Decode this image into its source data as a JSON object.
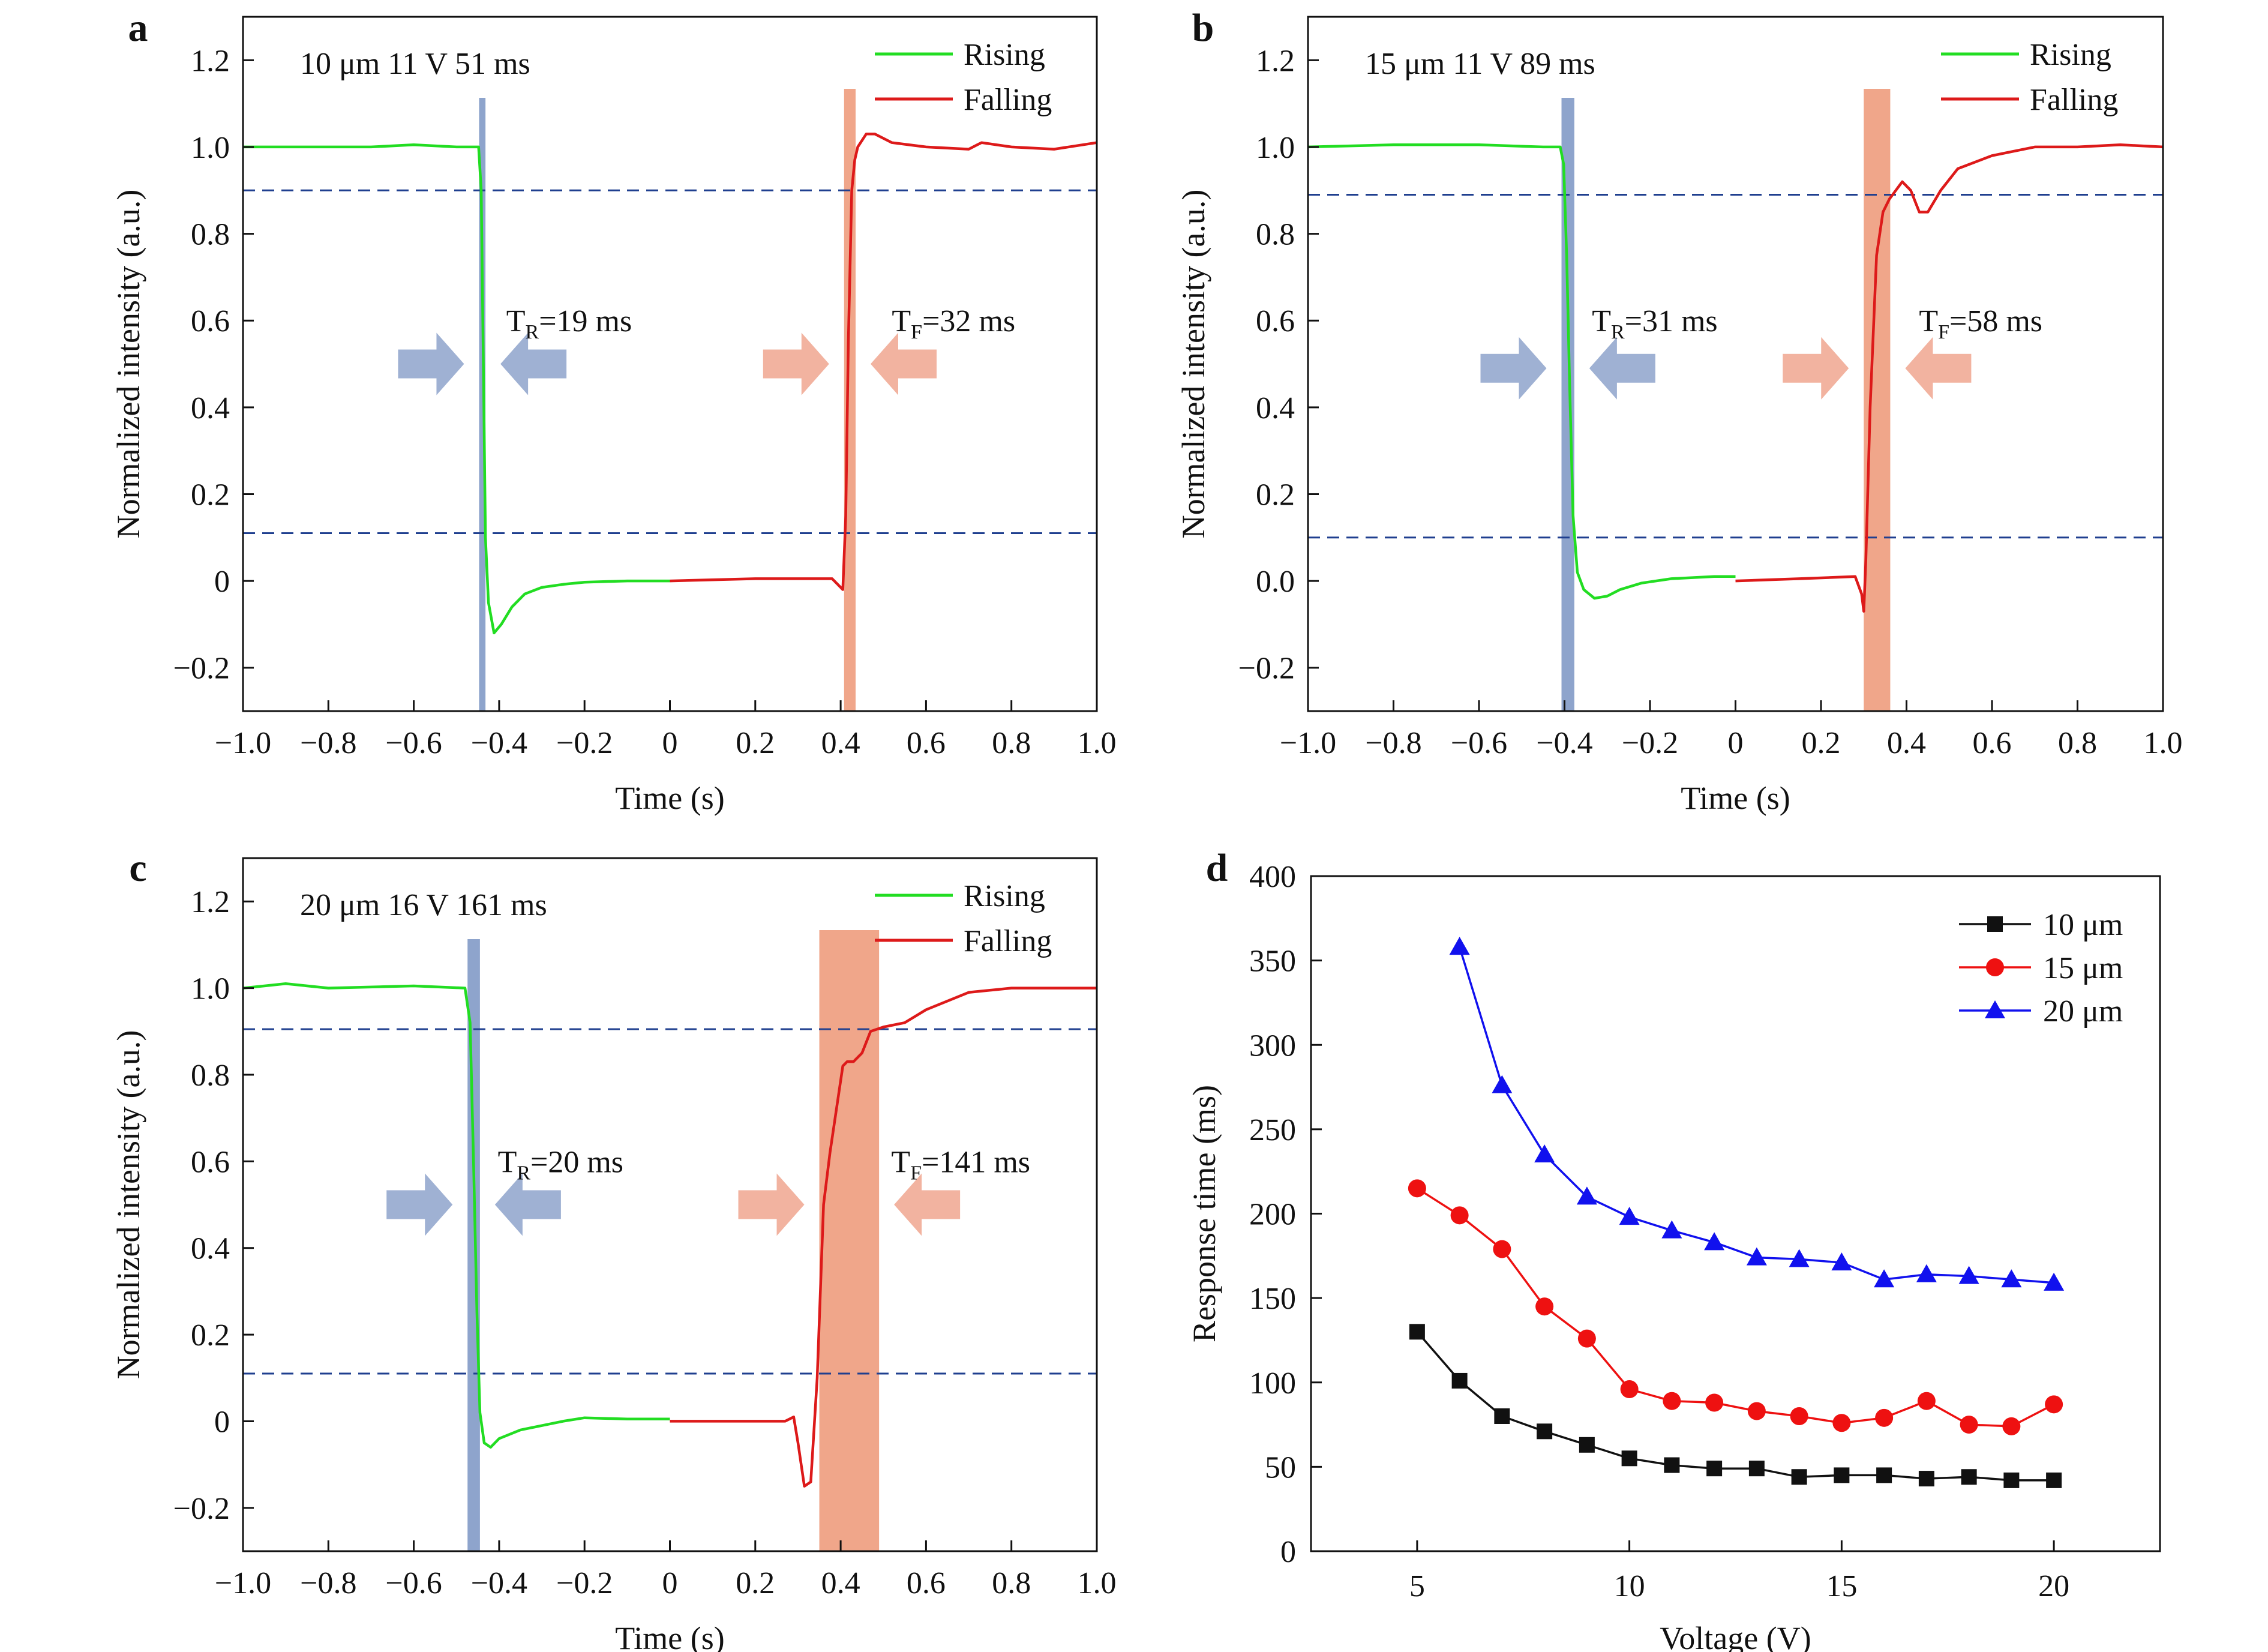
{
  "figure": {
    "panels": [
      "a",
      "b",
      "c",
      "d"
    ]
  },
  "colors": {
    "rising": "#22dd22",
    "falling": "#dd1a1a",
    "threshold": "#1f3f8f",
    "rise_band": "#8ea4cc",
    "fall_band": "#f0a68a",
    "rise_arrow": "#9fb1d3",
    "fall_arrow": "#f2b3a0",
    "s10": "#111111",
    "s15": "#ee1111",
    "s20": "#1111ee"
  },
  "chart_data": [
    {
      "type": "line",
      "panel": "a",
      "xlabel": "Time (s)",
      "ylabel": "Normalized intensity (a.u.)",
      "xlim": [
        -1.0,
        1.0
      ],
      "ylim": [
        -0.3,
        1.3
      ],
      "xticks": [
        -1.0,
        -0.8,
        -0.6,
        -0.4,
        -0.2,
        0,
        0.2,
        0.4,
        0.6,
        0.8,
        1.0
      ],
      "xtick_labels": [
        "−1.0",
        "−0.8",
        "−0.6",
        "−0.4",
        "−0.2",
        "0",
        "0.2",
        "0.4",
        "0.6",
        "0.8",
        "1.0"
      ],
      "yticks": [
        -0.2,
        0,
        0.2,
        0.4,
        0.6,
        0.8,
        1.0,
        1.2
      ],
      "ytick_labels": [
        "−0.2",
        "0",
        "0.2",
        "0.4",
        "0.6",
        "0.8",
        "1.0",
        "1.2"
      ],
      "annotation": "10 μm  11 V  51 ms",
      "rise_label": {
        "main": "T",
        "sub": "R",
        "rest": "=19 ms"
      },
      "fall_label": {
        "main": "T",
        "sub": "F",
        "rest": "=32 ms"
      },
      "thresholds": [
        0.9,
        0.11
      ],
      "rise_band": [
        -0.447,
        -0.432
      ],
      "fall_band": [
        0.408,
        0.435
      ],
      "rise_arrows_y": 0.5,
      "fall_arrows_y": 0.5,
      "legend": [
        "Rising",
        "Falling"
      ],
      "series": [
        {
          "name": "Rising",
          "x": [
            -1.0,
            -0.7,
            -0.6,
            -0.5,
            -0.448,
            -0.442,
            -0.437,
            -0.432,
            -0.425,
            -0.412,
            -0.395,
            -0.37,
            -0.34,
            -0.3,
            -0.25,
            -0.2,
            -0.1,
            0
          ],
          "y": [
            1.0,
            1.0,
            1.005,
            1.0,
            1.0,
            0.9,
            0.5,
            0.1,
            -0.05,
            -0.12,
            -0.1,
            -0.06,
            -0.03,
            -0.015,
            -0.008,
            -0.003,
            0.0,
            0.0
          ]
        },
        {
          "name": "Falling",
          "x": [
            0,
            0.2,
            0.38,
            0.405,
            0.412,
            0.418,
            0.426,
            0.433,
            0.44,
            0.46,
            0.48,
            0.52,
            0.6,
            0.7,
            0.72,
            0.73,
            0.8,
            0.9,
            1.0
          ],
          "y": [
            0.0,
            0.005,
            0.005,
            -0.02,
            0.15,
            0.55,
            0.9,
            0.97,
            1.0,
            1.03,
            1.03,
            1.01,
            1.0,
            0.995,
            1.005,
            1.01,
            1.0,
            0.995,
            1.01
          ]
        }
      ]
    },
    {
      "type": "line",
      "panel": "b",
      "xlabel": "Time (s)",
      "ylabel": "Normalized intensity (a.u.)",
      "xlim": [
        -1.0,
        1.0
      ],
      "ylim": [
        -0.3,
        1.3
      ],
      "xticks": [
        -1.0,
        -0.8,
        -0.6,
        -0.4,
        -0.2,
        0,
        0.2,
        0.4,
        0.6,
        0.8,
        1.0
      ],
      "xtick_labels": [
        "−1.0",
        "−0.8",
        "−0.6",
        "−0.4",
        "−0.2",
        "0",
        "0.2",
        "0.4",
        "0.6",
        "0.8",
        "1.0"
      ],
      "yticks": [
        -0.2,
        0,
        0.2,
        0.4,
        0.6,
        0.8,
        1.0,
        1.2
      ],
      "ytick_labels": [
        "−0.2",
        "0.0",
        "0.2",
        "0.4",
        "0.6",
        "0.8",
        "1.0",
        "1.2"
      ],
      "annotation": "15 μm  11 V  89 ms",
      "rise_label": {
        "main": "T",
        "sub": "R",
        "rest": "=31 ms"
      },
      "fall_label": {
        "main": "T",
        "sub": "F",
        "rest": "=58 ms"
      },
      "thresholds": [
        0.89,
        0.1
      ],
      "rise_band": [
        -0.407,
        -0.377
      ],
      "fall_band": [
        0.3,
        0.362
      ],
      "rise_arrows_y": 0.49,
      "fall_arrows_y": 0.49,
      "legend": [
        "Rising",
        "Falling"
      ],
      "series": [
        {
          "name": "Rising",
          "x": [
            -1.0,
            -0.8,
            -0.6,
            -0.45,
            -0.41,
            -0.402,
            -0.395,
            -0.388,
            -0.38,
            -0.37,
            -0.355,
            -0.33,
            -0.3,
            -0.27,
            -0.22,
            -0.15,
            -0.05,
            0
          ],
          "y": [
            1.0,
            1.005,
            1.005,
            1.0,
            1.0,
            0.96,
            0.75,
            0.45,
            0.15,
            0.02,
            -0.02,
            -0.04,
            -0.035,
            -0.02,
            -0.005,
            0.005,
            0.01,
            0.01
          ]
        },
        {
          "name": "Falling",
          "x": [
            0,
            0.15,
            0.28,
            0.295,
            0.3,
            0.305,
            0.315,
            0.33,
            0.345,
            0.36,
            0.375,
            0.39,
            0.41,
            0.43,
            0.45,
            0.48,
            0.52,
            0.6,
            0.7,
            0.8,
            0.9,
            1.0
          ],
          "y": [
            0.0,
            0.005,
            0.01,
            -0.03,
            -0.07,
            0.05,
            0.4,
            0.75,
            0.85,
            0.88,
            0.9,
            0.92,
            0.9,
            0.85,
            0.85,
            0.9,
            0.95,
            0.98,
            1.0,
            1.0,
            1.005,
            1.0
          ]
        }
      ]
    },
    {
      "type": "line",
      "panel": "c",
      "xlabel": "Time (s)",
      "ylabel": "Normalized intensity (a.u.)",
      "xlim": [
        -1.0,
        1.0
      ],
      "ylim": [
        -0.3,
        1.3
      ],
      "xticks": [
        -1.0,
        -0.8,
        -0.6,
        -0.4,
        -0.2,
        0,
        0.2,
        0.4,
        0.6,
        0.8,
        1.0
      ],
      "xtick_labels": [
        "−1.0",
        "−0.8",
        "−0.6",
        "−0.4",
        "−0.2",
        "0",
        "0.2",
        "0.4",
        "0.6",
        "0.8",
        "1.0"
      ],
      "yticks": [
        -0.2,
        0,
        0.2,
        0.4,
        0.6,
        0.8,
        1.0,
        1.2
      ],
      "ytick_labels": [
        "−0.2",
        "0",
        "0.2",
        "0.4",
        "0.6",
        "0.8",
        "1.0",
        "1.2"
      ],
      "annotation": "20 μm  16 V  161 ms",
      "rise_label": {
        "main": "T",
        "sub": "R",
        "rest": "=20 ms"
      },
      "fall_label": {
        "main": "T",
        "sub": "F",
        "rest": "=141 ms"
      },
      "thresholds": [
        0.905,
        0.11
      ],
      "rise_band": [
        -0.474,
        -0.445
      ],
      "fall_band": [
        0.35,
        0.49
      ],
      "rise_arrows_y": 0.5,
      "fall_arrows_y": 0.5,
      "legend": [
        "Rising",
        "Falling"
      ],
      "series": [
        {
          "name": "Rising",
          "x": [
            -1.0,
            -0.95,
            -0.9,
            -0.8,
            -0.6,
            -0.48,
            -0.468,
            -0.46,
            -0.452,
            -0.445,
            -0.435,
            -0.42,
            -0.4,
            -0.35,
            -0.3,
            -0.25,
            -0.2,
            -0.1,
            0
          ],
          "y": [
            1.0,
            1.005,
            1.01,
            1.0,
            1.005,
            1.0,
            0.92,
            0.6,
            0.25,
            0.02,
            -0.05,
            -0.06,
            -0.04,
            -0.02,
            -0.01,
            0.0,
            0.008,
            0.005,
            0.005
          ]
        },
        {
          "name": "Falling",
          "x": [
            0,
            0.15,
            0.27,
            0.29,
            0.3,
            0.315,
            0.33,
            0.345,
            0.36,
            0.375,
            0.39,
            0.405,
            0.415,
            0.43,
            0.45,
            0.47,
            0.5,
            0.55,
            0.6,
            0.7,
            0.8,
            0.9,
            1.0
          ],
          "y": [
            0.0,
            0.0,
            0.0,
            0.01,
            -0.05,
            -0.15,
            -0.14,
            0.1,
            0.5,
            0.62,
            0.72,
            0.82,
            0.83,
            0.83,
            0.85,
            0.9,
            0.91,
            0.92,
            0.95,
            0.99,
            1.0,
            1.0,
            1.0
          ]
        }
      ]
    },
    {
      "type": "line",
      "panel": "d",
      "xlabel": "Voltage (V)",
      "ylabel": "Response time (ms)",
      "xlim": [
        2.5,
        22.5
      ],
      "ylim": [
        0,
        400
      ],
      "xticks": [
        5,
        10,
        15,
        20
      ],
      "xtick_labels": [
        "5",
        "10",
        "15",
        "20"
      ],
      "yticks": [
        0,
        50,
        100,
        150,
        200,
        250,
        300,
        350,
        400
      ],
      "ytick_labels": [
        "0",
        "50",
        "100",
        "150",
        "200",
        "250",
        "300",
        "350",
        "400"
      ],
      "legend_position": "top-right",
      "series": [
        {
          "name": "10 μm",
          "marker": "square",
          "x": [
            5,
            6,
            7,
            8,
            9,
            10,
            11,
            12,
            13,
            14,
            15,
            16,
            17,
            18,
            19,
            20
          ],
          "y": [
            130,
            101,
            80,
            71,
            63,
            55,
            51,
            49,
            49,
            44,
            45,
            45,
            43,
            44,
            42,
            42
          ]
        },
        {
          "name": "15 μm",
          "marker": "circle",
          "x": [
            5,
            6,
            7,
            8,
            9,
            10,
            11,
            12,
            13,
            14,
            15,
            16,
            17,
            18,
            19,
            20
          ],
          "y": [
            215,
            199,
            179,
            145,
            126,
            96,
            89,
            88,
            83,
            80,
            76,
            79,
            89,
            75,
            74,
            87
          ]
        },
        {
          "name": "20 μm",
          "marker": "triangle",
          "x": [
            6,
            7,
            8,
            9,
            10,
            11,
            12,
            13,
            14,
            15,
            16,
            17,
            18,
            19,
            20
          ],
          "y": [
            358,
            276,
            235,
            210,
            198,
            190,
            183,
            174,
            173,
            171,
            161,
            164,
            163,
            161,
            159
          ]
        }
      ]
    }
  ]
}
